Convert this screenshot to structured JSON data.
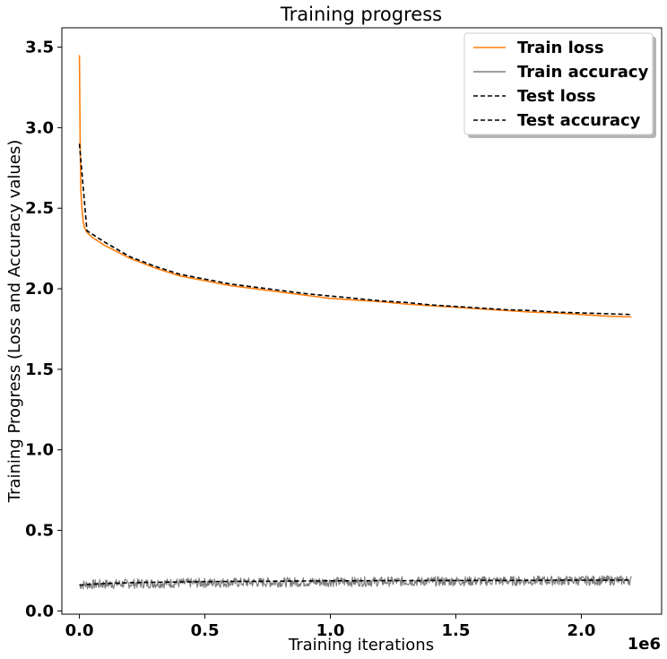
{
  "chart_data": {
    "type": "line",
    "title": "Training progress",
    "xlabel": "Training iterations",
    "ylabel": "Training Progress (Loss and Accuracy values)",
    "x_multiplier": "1e6",
    "xlim": [
      -0.07,
      2.32
    ],
    "ylim": [
      -0.02,
      3.62
    ],
    "x_ticks": [
      {
        "value": 0.0,
        "label": "0.0"
      },
      {
        "value": 0.5,
        "label": "0.5"
      },
      {
        "value": 1.0,
        "label": "1.0"
      },
      {
        "value": 1.5,
        "label": "1.5"
      },
      {
        "value": 2.0,
        "label": "2.0"
      }
    ],
    "y_ticks": [
      {
        "value": 0.0,
        "label": "0.0"
      },
      {
        "value": 0.5,
        "label": "0.5"
      },
      {
        "value": 1.0,
        "label": "1.0"
      },
      {
        "value": 1.5,
        "label": "1.5"
      },
      {
        "value": 2.0,
        "label": "2.0"
      },
      {
        "value": 2.5,
        "label": "2.5"
      },
      {
        "value": 3.0,
        "label": "3.0"
      },
      {
        "value": 3.5,
        "label": "3.5"
      }
    ],
    "grid": false,
    "legend_position": "top-right",
    "series": [
      {
        "name": "Train loss",
        "color": "#ff7f0e",
        "style": "solid",
        "x": [
          0.0,
          0.003,
          0.006,
          0.01,
          0.015,
          0.02,
          0.03,
          0.05,
          0.1,
          0.15,
          0.2,
          0.3,
          0.4,
          0.5,
          0.6,
          0.7,
          0.8,
          0.9,
          1.0,
          1.1,
          1.2,
          1.3,
          1.4,
          1.5,
          1.6,
          1.7,
          1.8,
          1.9,
          2.0,
          2.1,
          2.2
        ],
        "y": [
          3.45,
          2.9,
          2.6,
          2.5,
          2.42,
          2.38,
          2.35,
          2.32,
          2.27,
          2.23,
          2.19,
          2.13,
          2.08,
          2.05,
          2.02,
          2.0,
          1.98,
          1.96,
          1.94,
          1.93,
          1.92,
          1.905,
          1.895,
          1.885,
          1.875,
          1.865,
          1.855,
          1.85,
          1.84,
          1.83,
          1.825
        ]
      },
      {
        "name": "Train accuracy",
        "color": "#7f7f7f",
        "style": "solid",
        "x_start": 0.0,
        "x_end": 2.2,
        "y_start": 0.16,
        "y_end": 0.19,
        "noise_amplitude": 0.03
      },
      {
        "name": "Test loss",
        "color": "#000000",
        "style": "dashed",
        "x": [
          0.0,
          0.03,
          0.1,
          0.2,
          0.3,
          0.4,
          0.5,
          0.6,
          0.7,
          0.8,
          0.9,
          1.0,
          1.1,
          1.2,
          1.3,
          1.4,
          1.5,
          1.6,
          1.7,
          1.8,
          1.9,
          2.0,
          2.1,
          2.2
        ],
        "y": [
          2.9,
          2.36,
          2.29,
          2.2,
          2.14,
          2.09,
          2.06,
          2.03,
          2.01,
          1.99,
          1.97,
          1.955,
          1.94,
          1.925,
          1.915,
          1.9,
          1.89,
          1.88,
          1.87,
          1.865,
          1.855,
          1.85,
          1.845,
          1.84
        ]
      },
      {
        "name": "Test accuracy",
        "color": "#000000",
        "style": "dashed",
        "x": [
          0.0,
          0.03,
          0.1,
          0.2,
          0.3,
          0.4,
          0.5,
          0.6,
          0.7,
          0.8,
          0.9,
          1.0,
          1.1,
          1.2,
          1.3,
          1.4,
          1.5,
          1.6,
          1.7,
          1.8,
          1.9,
          2.0,
          2.1,
          2.2
        ],
        "y": [
          0.16,
          0.165,
          0.17,
          0.175,
          0.178,
          0.18,
          0.182,
          0.183,
          0.184,
          0.185,
          0.186,
          0.187,
          0.187,
          0.188,
          0.188,
          0.189,
          0.189,
          0.19,
          0.19,
          0.19,
          0.191,
          0.191,
          0.191,
          0.192
        ]
      }
    ]
  }
}
